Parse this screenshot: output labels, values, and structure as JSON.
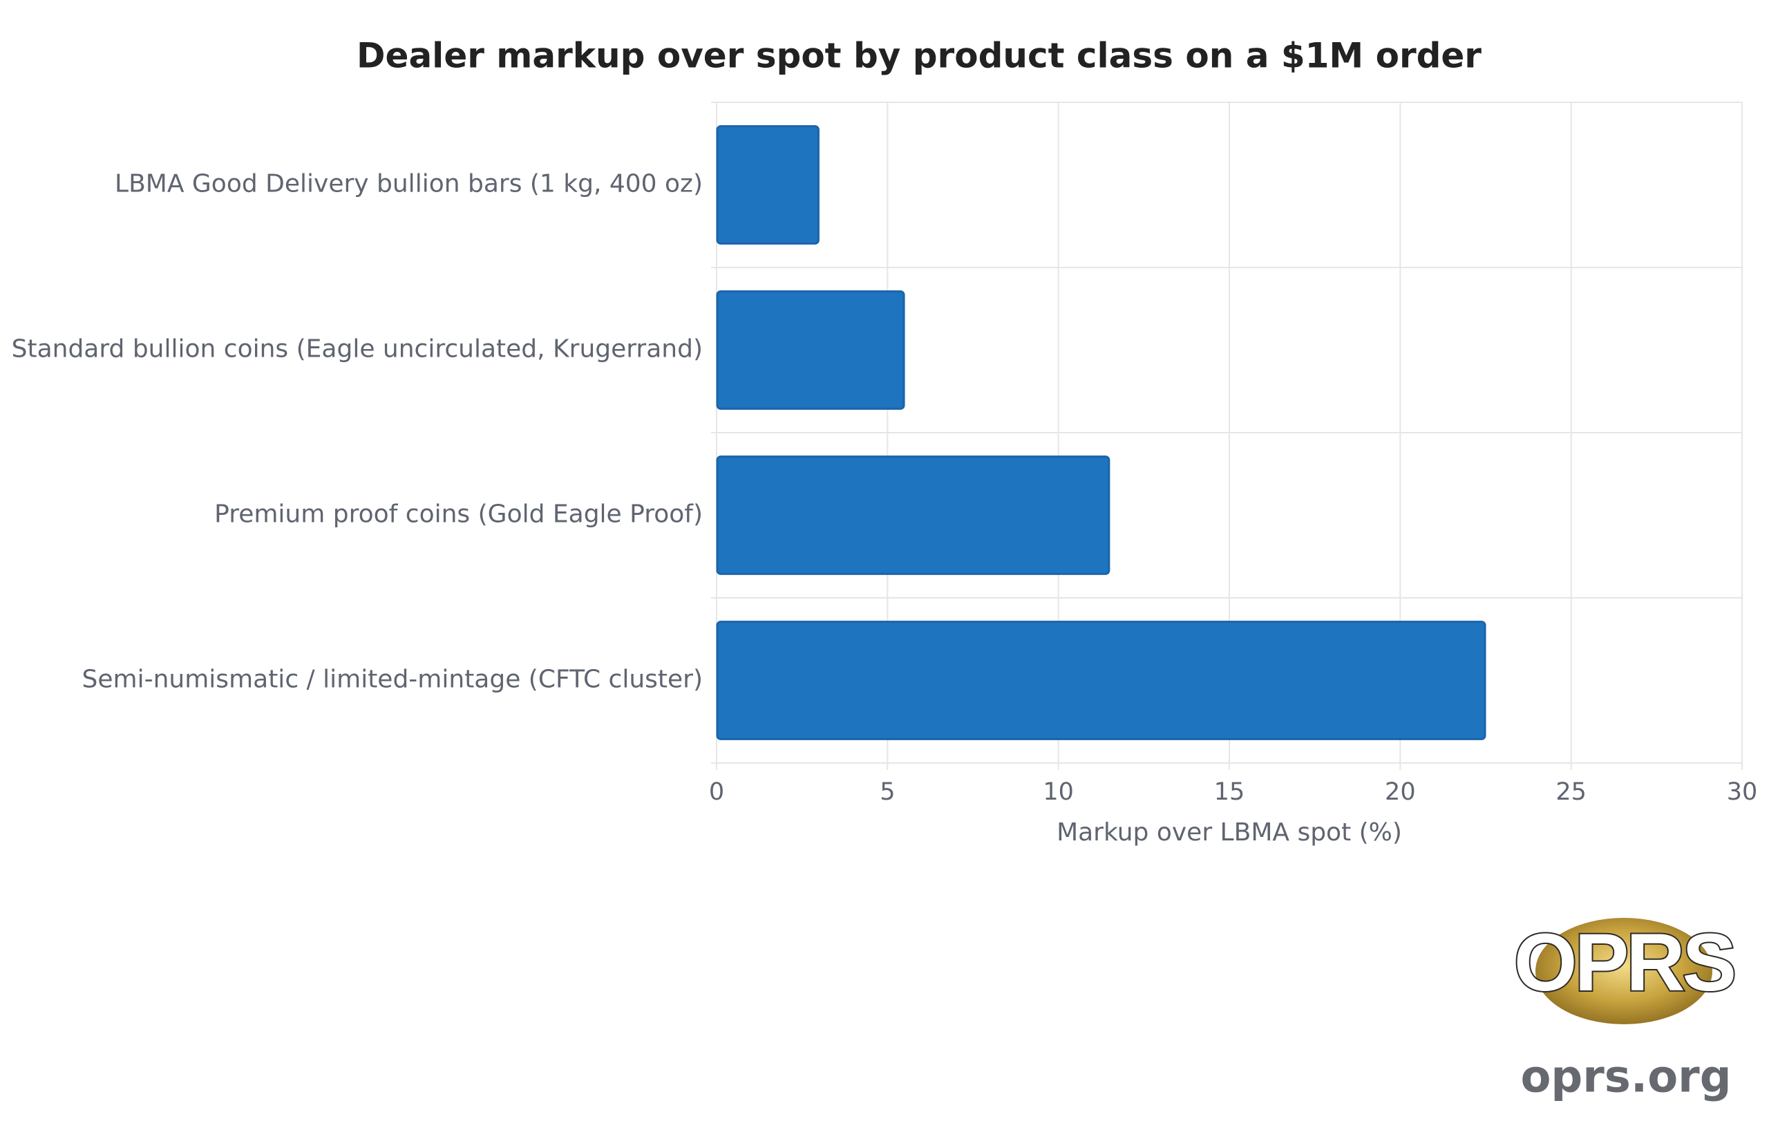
{
  "chart_data": {
    "type": "bar",
    "orientation": "horizontal",
    "title": "Dealer markup over spot by product class on a $1M order",
    "categories": [
      "LBMA Good Delivery bullion bars (1 kg, 400 oz)",
      "Standard bullion coins (Eagle uncirculated, Krugerrand)",
      "Premium proof coins (Gold Eagle Proof)",
      "Semi-numismatic / limited-mintage (CFTC cluster)"
    ],
    "values": [
      3,
      5.5,
      11.5,
      22.5
    ],
    "color": "#1f74c0",
    "xlabel": "Markup over LBMA spot (%)",
    "xlim": [
      0,
      30
    ],
    "xticks": [
      0,
      5,
      10,
      15,
      20,
      25,
      30
    ],
    "grid": true
  },
  "logo": {
    "mark": "OPRS",
    "url": "oprs.org"
  }
}
